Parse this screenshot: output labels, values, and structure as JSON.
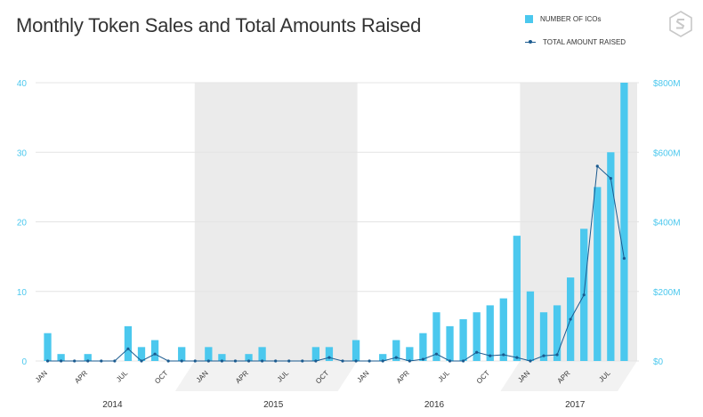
{
  "header": {
    "title": "Monthly Token Sales and Total Amounts Raised"
  },
  "legend": {
    "bars_label": "NUMBER OF ICOs",
    "line_label": "TOTAL AMOUNT RAISED"
  },
  "icons": {
    "logo": "brand-logo-icon"
  },
  "colors": {
    "bar": "#4bc8ee",
    "line": "#1a5a8f",
    "band": "#ebebeb",
    "left_axis": "#4bc8ee",
    "right_axis": "#4bc8ee"
  },
  "chart_data": {
    "type": "bar",
    "title": "Monthly Token Sales and Total Amounts Raised",
    "y_left": {
      "ticks": [
        "0",
        "10",
        "20",
        "30",
        "40"
      ],
      "lim": [
        0,
        40
      ]
    },
    "y_right": {
      "ticks": [
        "$0",
        "$200M",
        "$400M",
        "$600M",
        "$800M"
      ],
      "lim": [
        0,
        800
      ]
    },
    "x_month_ticks": [
      "JAN",
      "APR",
      "JUL",
      "OCT",
      "JAN",
      "APR",
      "JUL",
      "OCT",
      "JAN",
      "APR",
      "JUL",
      "OCT",
      "JAN",
      "APR",
      "JUL"
    ],
    "x_month_tick_index": [
      0,
      3,
      6,
      9,
      12,
      15,
      18,
      21,
      24,
      27,
      30,
      33,
      36,
      39,
      42
    ],
    "years": [
      "2014",
      "2015",
      "2016",
      "2017"
    ],
    "year_spans": [
      [
        0,
        11
      ],
      [
        12,
        23
      ],
      [
        24,
        35
      ],
      [
        36,
        44
      ]
    ],
    "shaded_years": [
      1,
      3
    ],
    "months": 45,
    "series": [
      {
        "name": "NUMBER OF ICOs",
        "type": "bar",
        "axis": "left",
        "values": [
          4,
          1,
          0,
          1,
          0,
          0,
          5,
          2,
          3,
          0,
          2,
          0,
          2,
          1,
          0,
          1,
          2,
          0,
          0,
          0,
          2,
          2,
          0,
          3,
          0,
          1,
          3,
          2,
          4,
          7,
          5,
          6,
          7,
          8,
          9,
          18,
          10,
          7,
          8,
          12,
          19,
          25,
          30,
          40,
          0
        ]
      },
      {
        "name": "TOTAL AMOUNT RAISED",
        "type": "line",
        "axis": "right",
        "values": [
          0,
          0,
          0,
          0,
          0,
          0,
          35,
          0,
          20,
          0,
          0,
          0,
          0,
          0,
          0,
          0,
          0,
          0,
          0,
          0,
          0,
          10,
          0,
          0,
          0,
          0,
          10,
          0,
          5,
          20,
          0,
          0,
          25,
          15,
          18,
          10,
          0,
          15,
          18,
          120,
          190,
          560,
          525,
          295,
          null
        ]
      }
    ]
  }
}
